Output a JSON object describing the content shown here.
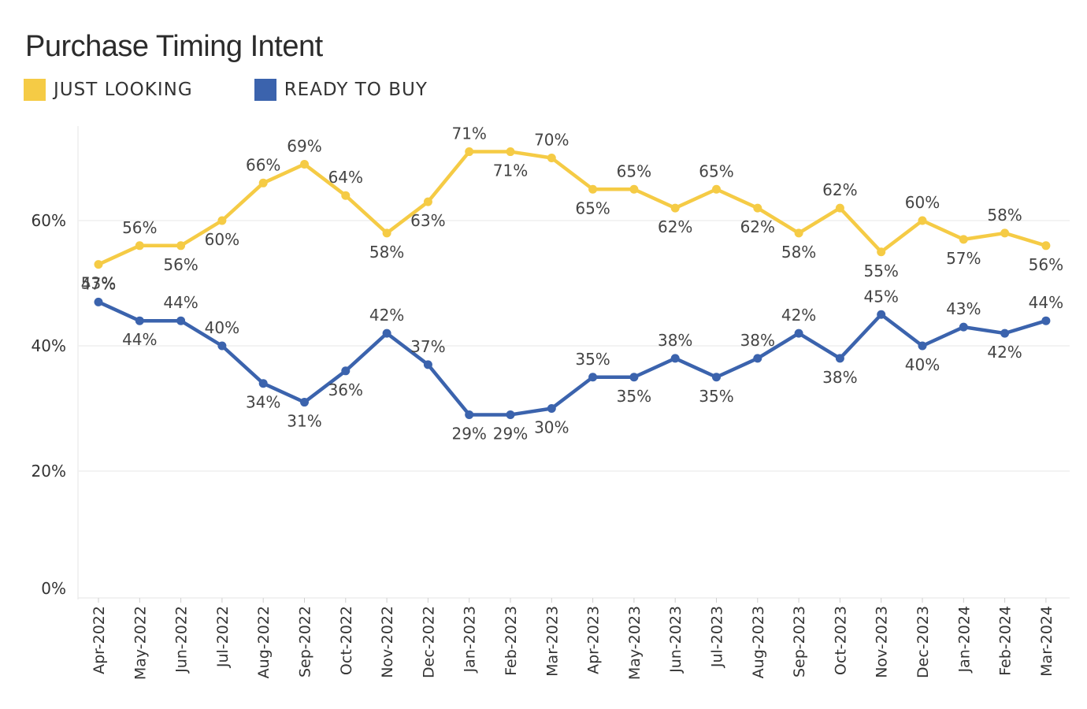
{
  "chart_data": {
    "type": "line",
    "title": "Purchase Timing Intent",
    "categories": [
      "Apr-2022",
      "May-2022",
      "Jun-2022",
      "Jul-2022",
      "Aug-2022",
      "Sep-2022",
      "Oct-2022",
      "Nov-2022",
      "Dec-2022",
      "Jan-2023",
      "Feb-2023",
      "Mar-2023",
      "Apr-2023",
      "May-2023",
      "Jun-2023",
      "Jul-2023",
      "Aug-2023",
      "Sep-2023",
      "Oct-2023",
      "Nov-2023",
      "Dec-2023",
      "Jan-2024",
      "Feb-2024",
      "Mar-2024"
    ],
    "series": [
      {
        "name": "JUST LOOKING",
        "color": "#f5cb45",
        "values": [
          53,
          56,
          56,
          60,
          66,
          69,
          64,
          58,
          63,
          71,
          71,
          70,
          65,
          65,
          62,
          65,
          62,
          58,
          62,
          55,
          60,
          57,
          58,
          56
        ],
        "label_position": [
          "below",
          "above",
          "below",
          "below",
          "above",
          "above",
          "above",
          "below",
          "below",
          "above",
          "below",
          "above",
          "below",
          "above",
          "below",
          "above",
          "below",
          "below",
          "above",
          "below",
          "above",
          "below",
          "above",
          "below"
        ]
      },
      {
        "name": "READY TO BUY",
        "color": "#3b63ad",
        "values": [
          47,
          44,
          44,
          40,
          34,
          31,
          36,
          42,
          37,
          29,
          29,
          30,
          35,
          35,
          38,
          35,
          38,
          42,
          38,
          45,
          40,
          43,
          42,
          44
        ],
        "label_position": [
          "above",
          "below",
          "above",
          "above",
          "below",
          "below",
          "below",
          "above",
          "above",
          "below",
          "below",
          "below",
          "above",
          "below",
          "above",
          "below",
          "above",
          "above",
          "below",
          "above",
          "below",
          "above",
          "below",
          "above"
        ]
      }
    ],
    "y_ticks": [
      "0%",
      "20%",
      "40%",
      "60%"
    ],
    "ylim": [
      0,
      75
    ],
    "grid": true,
    "legend_position": "top-left"
  }
}
